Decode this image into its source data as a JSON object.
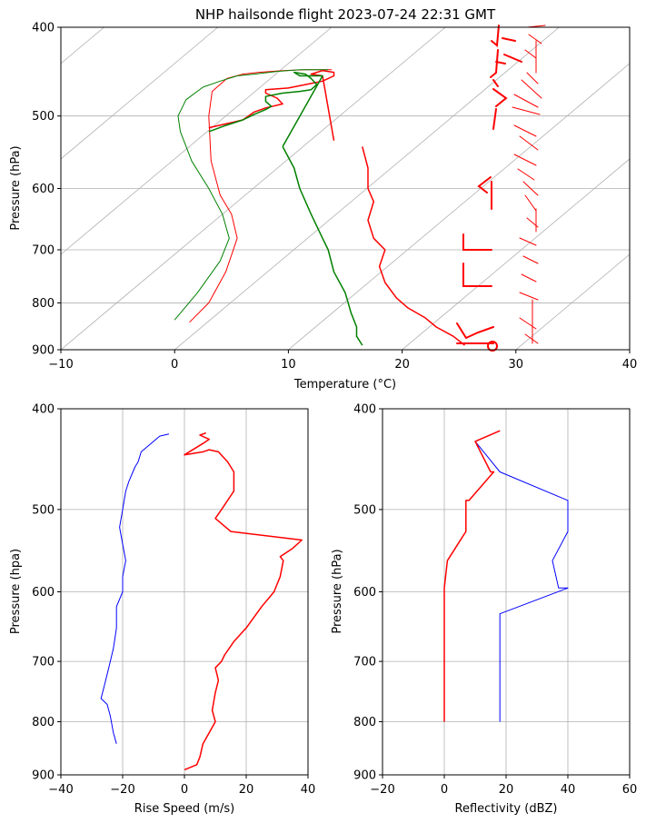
{
  "chart_data": [
    {
      "type": "skew-t",
      "title": "NHP hailsonde flight 2023-07-24 22:31 GMT",
      "xlabel": "Temperature (°C)",
      "ylabel": "Pressure (hPa)",
      "xlim": [
        -10,
        40
      ],
      "ylim": [
        900,
        400
      ],
      "xticks": [
        -10,
        0,
        10,
        20,
        30,
        40
      ],
      "yticks": [
        400,
        500,
        600,
        700,
        800,
        900
      ],
      "grid": true,
      "series": [
        {
          "color": "#ff0000",
          "width": 1.0,
          "x": [
            1.3,
            3.0,
            4.5,
            5.5,
            5.0,
            4.0,
            3.2,
            3.0,
            3.3,
            4.6,
            6.0,
            7.4,
            9.5,
            11.5,
            13.8
          ],
          "y": [
            840,
            800,
            740,
            680,
            640,
            610,
            560,
            500,
            470,
            455,
            450,
            448,
            446,
            445,
            445
          ]
        },
        {
          "color": "#008000",
          "width": 1.0,
          "x": [
            0.0,
            2.0,
            4.0,
            4.8,
            4.2,
            3.0,
            1.5,
            0.5,
            0.3,
            1.0,
            2.5,
            4.0,
            5.5,
            7.0,
            9.0,
            11.0,
            13.5
          ],
          "y": [
            835,
            780,
            720,
            680,
            640,
            600,
            560,
            520,
            500,
            480,
            465,
            458,
            452,
            450,
            447,
            445,
            445
          ]
        },
        {
          "color": "#ff0000",
          "width": 1.5,
          "x": [
            3.0,
            4.5,
            6.0,
            7.0,
            8.0,
            9.5,
            9.0,
            8.0,
            8.0,
            10.0,
            11.5,
            13.0,
            14.0,
            14.0,
            13.0,
            12.0,
            13.0,
            14.0
          ],
          "y": [
            515,
            510,
            505,
            495,
            490,
            485,
            478,
            472,
            468,
            466,
            462,
            458,
            452,
            448,
            446,
            450,
            452,
            532
          ]
        },
        {
          "color": "#008000",
          "width": 1.5,
          "x": [
            3.0,
            4.5,
            6.0,
            7.0,
            8.0,
            8.5,
            8.0,
            8.0,
            9.5,
            11.0,
            12.0,
            12.5,
            12.0,
            11.5,
            10.5,
            11.0,
            13.0,
            9.5
          ],
          "y": [
            520,
            512,
            505,
            498,
            492,
            488,
            482,
            476,
            472,
            470,
            468,
            462,
            455,
            450,
            448,
            452,
            452,
            540
          ]
        },
        {
          "color": "#008000",
          "width": 1.5,
          "x": [
            9.5,
            10.5,
            11.0,
            12.0,
            13.0,
            13.5,
            14.0,
            15.0,
            15.5,
            16.0,
            16.0,
            16.5
          ],
          "y": [
            540,
            570,
            600,
            640,
            680,
            700,
            740,
            780,
            820,
            850,
            870,
            890
          ]
        },
        {
          "color": "#ff0000",
          "width": 1.5,
          "x": [
            16.5,
            17.0,
            17.0,
            17.5,
            17.0,
            17.5,
            18.5,
            18.0,
            18.5,
            19.5,
            20.5,
            22.0,
            23.0,
            24.5,
            25.5
          ],
          "y": [
            540,
            570,
            600,
            620,
            650,
            680,
            700,
            730,
            760,
            790,
            810,
            830,
            850,
            870,
            890
          ]
        }
      ]
    },
    {
      "type": "line",
      "xlabel": "Rise Speed (m/s)",
      "ylabel": "Pressure (hpa)",
      "xlim": [
        -40,
        40
      ],
      "ylim": [
        900,
        400
      ],
      "xticks": [
        -40,
        -20,
        0,
        20,
        40
      ],
      "yticks": [
        400,
        500,
        600,
        700,
        800,
        900
      ],
      "grid": true,
      "series": [
        {
          "color": "#0000ff",
          "width": 1.0,
          "x": [
            -22,
            -23,
            -24,
            -25,
            -27,
            -26,
            -25,
            -24,
            -23,
            -22,
            -22,
            -20,
            -20,
            -19,
            -20,
            -21,
            -20,
            -19,
            -18,
            -16,
            -15,
            -14,
            -10,
            -8,
            -5
          ],
          "y": [
            840,
            820,
            790,
            770,
            760,
            740,
            720,
            700,
            680,
            650,
            620,
            600,
            580,
            560,
            540,
            520,
            500,
            480,
            470,
            455,
            450,
            440,
            430,
            425,
            423
          ]
        },
        {
          "color": "#ff0000",
          "width": 1.5,
          "x": [
            0,
            4,
            5,
            6,
            8,
            10,
            9,
            10,
            11,
            10,
            12,
            13,
            16,
            20,
            25,
            29,
            31,
            32,
            31,
            35,
            38,
            15,
            10,
            12,
            16,
            16,
            14,
            11,
            8,
            6,
            2,
            0,
            6,
            8,
            5,
            7
          ],
          "y": [
            890,
            880,
            865,
            840,
            820,
            800,
            780,
            750,
            730,
            710,
            700,
            690,
            670,
            650,
            620,
            600,
            580,
            560,
            555,
            545,
            535,
            525,
            510,
            500,
            480,
            460,
            450,
            440,
            438,
            440,
            442,
            443,
            432,
            428,
            424,
            422
          ]
        }
      ]
    },
    {
      "type": "line",
      "xlabel": "Reflectivity (dBZ)",
      "ylabel": "Pressure (hPa)",
      "xlim": [
        -20,
        60
      ],
      "ylim": [
        900,
        400
      ],
      "xticks": [
        -20,
        0,
        20,
        40,
        60
      ],
      "yticks": [
        400,
        500,
        600,
        700,
        800,
        900
      ],
      "grid": true,
      "series": [
        {
          "color": "#0000ff",
          "width": 1.0,
          "x": [
            18,
            18,
            40,
            37,
            35,
            40,
            40,
            18,
            10,
            18
          ],
          "y": [
            800,
            630,
            595,
            595,
            560,
            525,
            490,
            460,
            430,
            420
          ]
        },
        {
          "color": "#ff0000",
          "width": 1.5,
          "x": [
            0,
            0,
            0,
            0,
            0,
            1,
            7,
            7,
            8,
            16,
            15,
            10,
            18
          ],
          "y": [
            800,
            700,
            630,
            600,
            595,
            560,
            525,
            490,
            490,
            460,
            460,
            430,
            420
          ]
        }
      ]
    }
  ]
}
